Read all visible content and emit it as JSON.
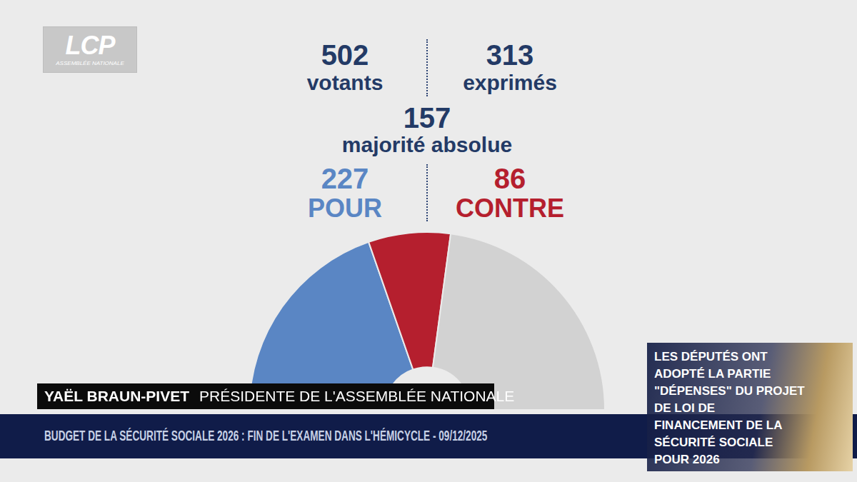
{
  "logo": {
    "text": "LCP",
    "subtext": "ASSEMBLÉE NATIONALE"
  },
  "tally": [
    {
      "value": 502,
      "label": "votants"
    },
    {
      "value": 313,
      "label": "exprimés"
    }
  ],
  "majority": {
    "value": 157,
    "label": "majorité absolue"
  },
  "chart_data": {
    "type": "doughnut",
    "categories": [
      "POUR",
      "CONTRE",
      null
    ],
    "values": [
      227,
      86,
      264
    ],
    "colors": [
      "#5a86c4",
      "#b51f2e",
      "#d2d2d2"
    ]
  },
  "caption": {
    "name": "YAËL BRAUN-PIVET",
    "role": "PRÉSIDENTE DE L'ASSEMBLÉE NATIONALE"
  },
  "ticker": "BUDGET DE LA SÉCURITÉ SOCIALE 2026 : FIN DE L'EXAMEN DANS L'HÉMICYCLE - 09/12/2025",
  "side_panel": {
    "lines": [
      "LES DÉPUTÉS ONT",
      "ADOPTÉ LA PARTIE",
      "\"DÉPENSES\" DU PROJET",
      "DE LOI DE",
      "FINANCEMENT DE LA",
      "SÉCURITÉ SOCIALE",
      "POUR 2026"
    ]
  }
}
